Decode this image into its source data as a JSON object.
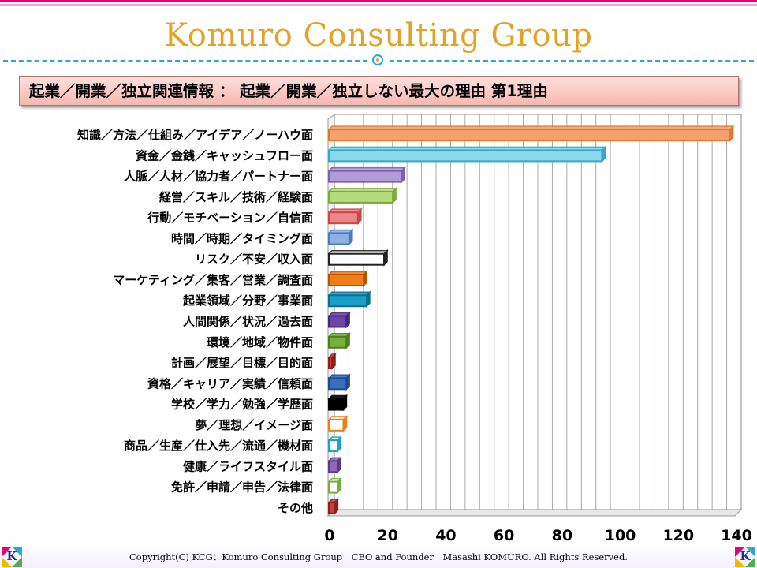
{
  "header": {
    "title": "Komuro Consulting Group",
    "banner": "起業／開業／独立関連情報 ： 起業／開業／独立しない最大の理由 第1理由"
  },
  "footer": {
    "copyright": "Copyright(C) KCG：Komuro Consulting Group　CEO and Founder　Masashi KOMURO. All Rights Reserved.",
    "logo_letter": "K"
  },
  "chart_data": {
    "type": "bar",
    "orientation": "horizontal",
    "style": "3d",
    "categories": [
      "知識／方法／仕組み／アイデア／ノーハウ面",
      "資金／金銭／キャッシュフロー面",
      "人脈／人材／協力者／パートナー面",
      "経営／スキル／技術／経験面",
      "行動／モチベーション／自信面",
      "時間／時期／タイミング面",
      "リスク／不安／収入面",
      "マーケティング／集客／営業／調査面",
      "起業領域／分野／事業面",
      "人間関係／状況／過去面",
      "環境／地域／物件面",
      "計画／展望／目標／目的面",
      "資格／キャリア／実績／信頼面",
      "学校／学力／勉強／学歴面",
      "夢／理想／イメージ面",
      "商品／生産／仕入先／流通／機材面",
      "健康／ライフスタイル面",
      "免許／申請／申告／法律面",
      "その他"
    ],
    "values": [
      138,
      94,
      25,
      22,
      10,
      7,
      19,
      12,
      13,
      6,
      6,
      1,
      6,
      5,
      5,
      3,
      3,
      3,
      2
    ],
    "colors": [
      "#f6a26e",
      "#8ad9ea",
      "#b39ad8",
      "#b5dc7c",
      "#ef8588",
      "#8fb0e3",
      "#ffffff",
      "#f07f1a",
      "#1aa0c8",
      "#6e45a4",
      "#77b03c",
      "#c8403c",
      "#3a6fc0",
      "#000000",
      "#ffffff",
      "#ffffff",
      "#8c68b8",
      "#ffffff",
      "#c8403c"
    ],
    "outline_colors": [
      "#e07830",
      "#35a8c8",
      "#7d60b0",
      "#7aaa38",
      "#c84848",
      "#4a7cc0",
      "#222222",
      "#b85400",
      "#0a6f92",
      "#46287a",
      "#4e7e1e",
      "#8c201c",
      "#1e4a90",
      "#000000",
      "#f07f1a",
      "#1aa0c8",
      "#5a3a8a",
      "#77b03c",
      "#8c201c"
    ],
    "xlim": [
      0,
      140
    ],
    "xticks": [
      0,
      20,
      40,
      60,
      80,
      100,
      120,
      140
    ],
    "grid": true,
    "xlabel": "",
    "ylabel": ""
  }
}
